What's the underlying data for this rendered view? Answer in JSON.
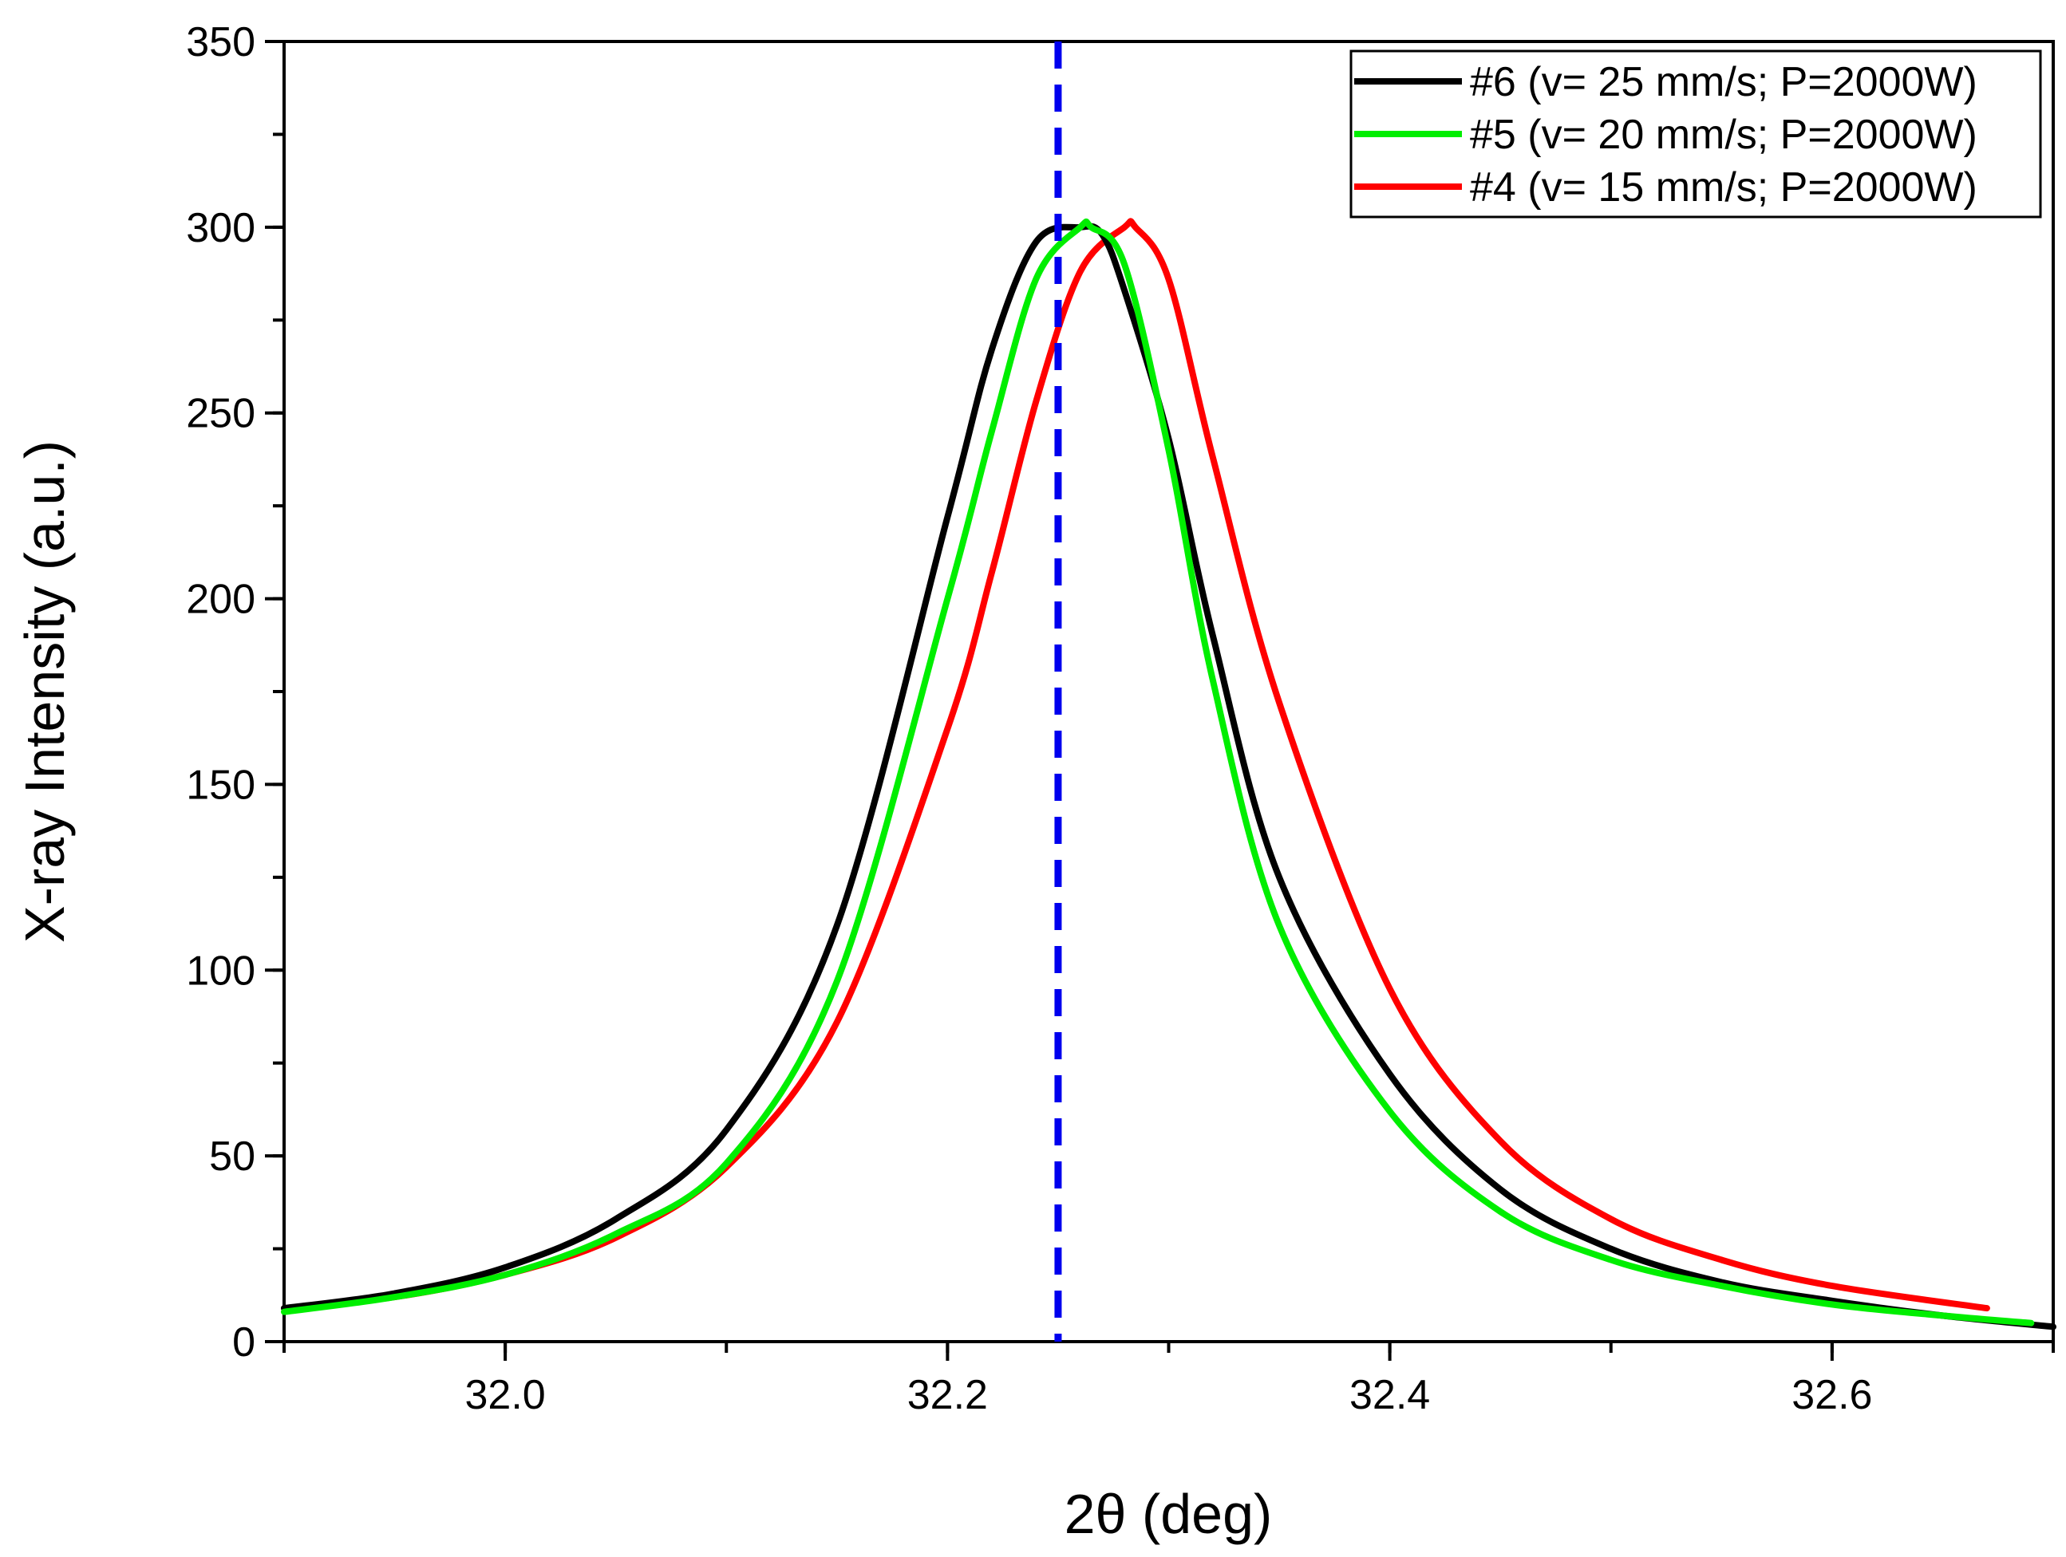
{
  "chart_data": {
    "type": "line",
    "title": "",
    "xlabel": "2θ (deg)",
    "ylabel": "X-ray Intensity (a.u.)",
    "xlim": [
      31.9,
      32.7
    ],
    "ylim": [
      0,
      350
    ],
    "x_ticks": [
      32.0,
      32.2,
      32.4,
      32.6
    ],
    "x_tick_labels": [
      "32.0",
      "32.2",
      "32.4",
      "32.6"
    ],
    "y_ticks": [
      0,
      50,
      100,
      150,
      200,
      250,
      300,
      350
    ],
    "y_tick_labels": [
      "0",
      "50",
      "100",
      "150",
      "200",
      "250",
      "300",
      "350"
    ],
    "legend_position": "top-right",
    "reference_line": {
      "x": 32.25,
      "color": "#0000ee",
      "style": "dashed"
    },
    "series": [
      {
        "name": "#6 (v= 25 mm/s; P=2000W)",
        "color": "#000000",
        "x": [
          31.9,
          31.95,
          32.0,
          32.05,
          32.1,
          32.15,
          32.2,
          32.22,
          32.24,
          32.26,
          32.27,
          32.28,
          32.3,
          32.32,
          32.35,
          32.4,
          32.45,
          32.5,
          32.55,
          32.6,
          32.65,
          32.7
        ],
        "values": [
          9,
          13,
          20,
          33,
          57,
          112,
          222,
          267,
          296,
          300,
          298,
          283,
          243,
          190,
          125,
          72,
          41,
          25,
          16,
          11,
          7,
          4
        ]
      },
      {
        "name": "#5 (v= 20 mm/s; P=2000W)",
        "color": "#00ee00",
        "x": [
          31.9,
          31.95,
          32.0,
          32.05,
          32.1,
          32.15,
          32.2,
          32.22,
          32.24,
          32.26,
          32.265,
          32.28,
          32.3,
          32.32,
          32.35,
          32.4,
          32.45,
          32.5,
          32.55,
          32.6,
          32.65,
          32.69
        ],
        "values": [
          8,
          12,
          18,
          29,
          48,
          97,
          200,
          245,
          286,
          300,
          300,
          290,
          240,
          178,
          112,
          62,
          35,
          22,
          15,
          10,
          7,
          5
        ]
      },
      {
        "name": "#4 (v= 15 mm/s; P=2000W)",
        "color": "#ff0000",
        "x": [
          31.9,
          31.95,
          32.0,
          32.05,
          32.1,
          32.15,
          32.2,
          32.22,
          32.24,
          32.26,
          32.28,
          32.285,
          32.3,
          32.32,
          32.35,
          32.4,
          32.45,
          32.5,
          32.55,
          32.6,
          32.67
        ],
        "values": [
          9,
          12,
          18,
          28,
          47,
          86,
          165,
          207,
          253,
          288,
          300,
          300,
          286,
          238,
          172,
          95,
          54,
          33,
          22,
          15,
          9
        ]
      }
    ]
  }
}
